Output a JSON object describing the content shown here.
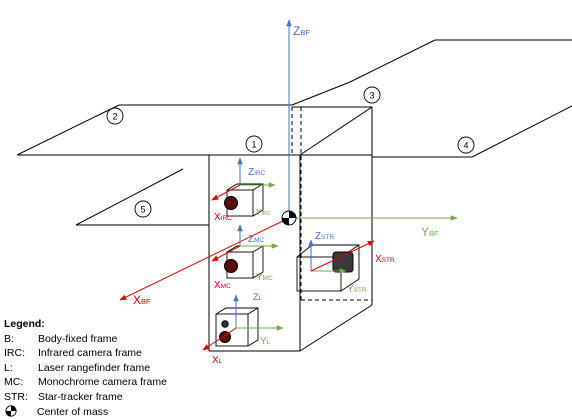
{
  "frame_labels": {
    "z_bf": {
      "main": "Z",
      "sub": "BF"
    },
    "y_bf": {
      "main": "Y",
      "sub": "BF"
    },
    "x_bf": {
      "main": "X",
      "sub": "BF"
    },
    "z_irc": {
      "main": "Z",
      "sub": "IRC"
    },
    "y_irc": {
      "main": "Y",
      "sub": "IRC"
    },
    "x_irc": {
      "main": "X",
      "sub": "IRC"
    },
    "z_mc": {
      "main": "Z",
      "sub": "MC"
    },
    "y_mc": {
      "main": "Y",
      "sub": "MC"
    },
    "x_mc": {
      "main": "X",
      "sub": "MC"
    },
    "z_l": {
      "main": "Z",
      "sub": "L"
    },
    "y_l": {
      "main": "Y",
      "sub": "L"
    },
    "x_l": {
      "main": "X",
      "sub": "L"
    },
    "z_str": {
      "main": "Z",
      "sub": "STR"
    },
    "y_str": {
      "main": "Y",
      "sub": "STR"
    },
    "x_str": {
      "main": "X",
      "sub": "STR"
    }
  },
  "panel_numbers": [
    "1",
    "2",
    "3",
    "4",
    "5"
  ],
  "legend": {
    "title": "Legend:",
    "items": [
      {
        "key": "B:",
        "desc": "Body-fixed frame"
      },
      {
        "key": "IRC:",
        "desc": "Infrared camera frame"
      },
      {
        "key": "L:",
        "desc": "Laser rangefinder frame"
      },
      {
        "key": "MC:",
        "desc": "Monochrome camera frame"
      },
      {
        "key": "STR:",
        "desc": "Star-tracker frame"
      }
    ],
    "com_label": "Center of mass"
  },
  "colors": {
    "z_axis": "#4472c4",
    "y_axis": "#70ad47",
    "x_axis": "#e00000",
    "outline": "#000000"
  }
}
